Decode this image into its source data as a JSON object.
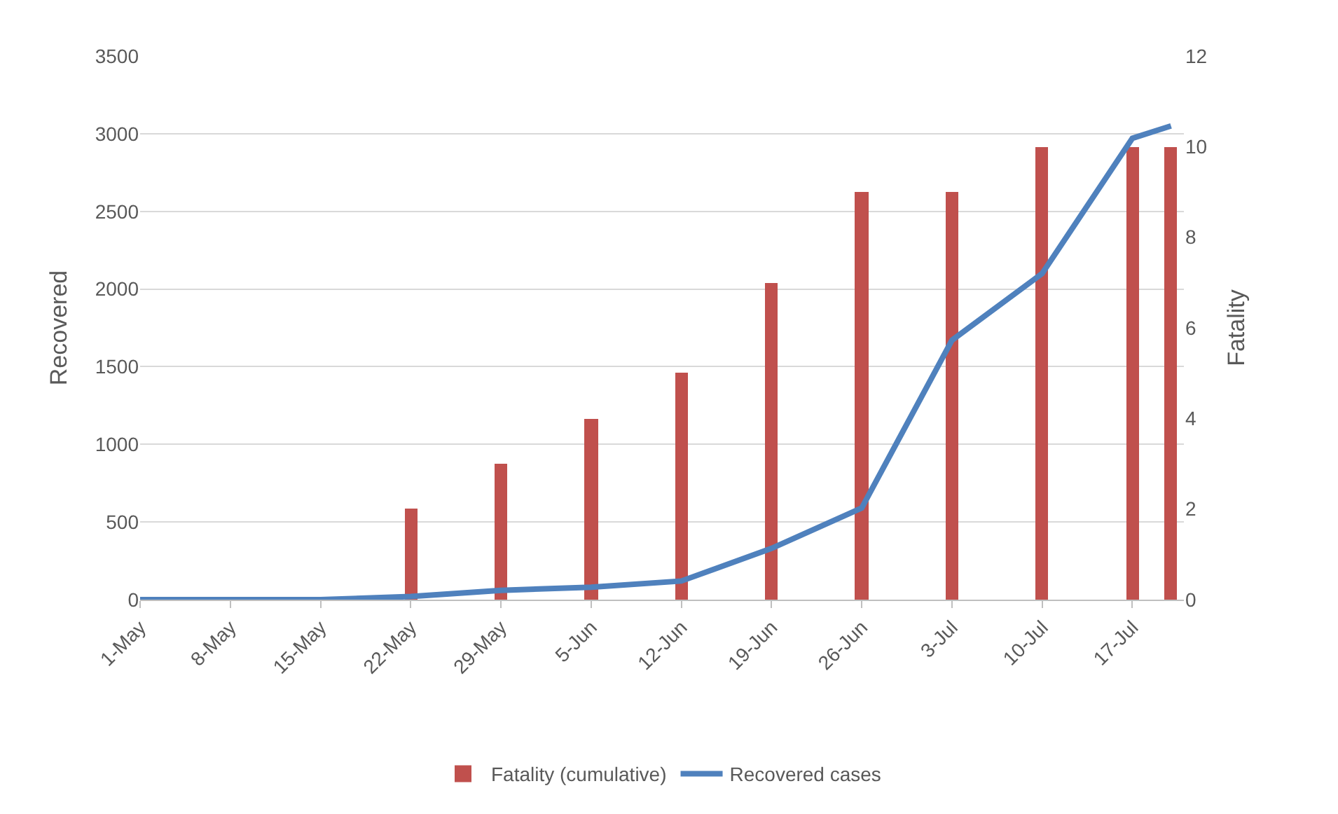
{
  "chart_data": {
    "type": "bar",
    "ylabel": "Recovered",
    "y2label": "Fatality",
    "x": [
      "--05-01",
      "--05-08",
      "--05-15",
      "--05-22",
      "--05-29",
      "--06-05",
      "--06-12",
      "--06-19",
      "--06-26",
      "--07-03",
      "--07-10",
      "--07-17",
      "--07-20"
    ],
    "series": [
      {
        "name": "Fatality (cumulative)",
        "axis": "y2",
        "color": "#c0504d",
        "values": [
          0,
          0,
          0,
          2,
          3,
          4,
          5,
          7,
          9,
          9,
          10,
          10,
          10
        ]
      },
      {
        "name": "Recovered cases",
        "type": "line",
        "axis": "y",
        "color": "#4f81bd",
        "values": [
          0,
          0,
          0,
          20,
          60,
          80,
          120,
          330,
          590,
          1670,
          2100,
          2970,
          3050
        ]
      }
    ],
    "xlim": [
      "--05-01",
      "--07-21"
    ],
    "xticks": [
      {
        "value": "--05-01",
        "label": "1-May"
      },
      {
        "value": "--05-08",
        "label": "8-May"
      },
      {
        "value": "--05-15",
        "label": "15-May"
      },
      {
        "value": "--05-22",
        "label": "22-May"
      },
      {
        "value": "--05-29",
        "label": "29-May"
      },
      {
        "value": "--06-05",
        "label": "5-Jun"
      },
      {
        "value": "--06-12",
        "label": "12-Jun"
      },
      {
        "value": "--06-19",
        "label": "19-Jun"
      },
      {
        "value": "--06-26",
        "label": "26-Jun"
      },
      {
        "value": "--07-03",
        "label": "3-Jul"
      },
      {
        "value": "--07-10",
        "label": "10-Jul"
      },
      {
        "value": "--07-17",
        "label": "17-Jul"
      }
    ],
    "ylim": [
      0,
      3500
    ],
    "yticks": [
      0,
      500,
      1000,
      1500,
      2000,
      2500,
      3000,
      3500
    ],
    "y2lim": [
      0,
      12
    ],
    "y2ticks": [
      0,
      2,
      4,
      6,
      8,
      10,
      12
    ],
    "grid": "y",
    "legend": "bottom",
    "marker": "none",
    "line_style": "solid"
  }
}
